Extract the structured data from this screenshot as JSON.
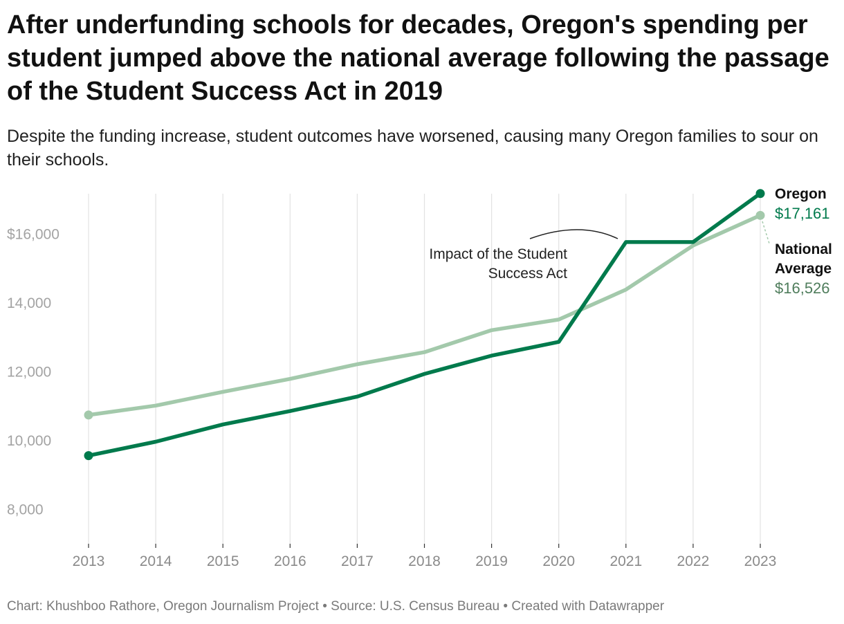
{
  "title": "After underfunding schools for decades, Oregon's spending per student jumped above the national average following the passage of the Student Success Act in 2019",
  "subtitle": "Despite the funding increase, student outcomes have worsened, causing many Oregon families to sour on their schools.",
  "footer": {
    "chart_credit": "Chart: Khushboo Rathore, Oregon Journalism Project",
    "source": "Source: U.S. Census Bureau",
    "created_with": "Created with Datawrapper",
    "separator": "•"
  },
  "colors": {
    "oregon": "#007a4c",
    "national": "#a3c9ab",
    "oregon_text": "#007a4c",
    "national_text": "#4f7d5c"
  },
  "chart_data": {
    "type": "line",
    "x": [
      2013,
      2014,
      2015,
      2016,
      2017,
      2018,
      2019,
      2020,
      2021,
      2022,
      2023
    ],
    "ylim": [
      7000,
      17600
    ],
    "yticks": [
      {
        "value": 16000,
        "label": "$16,000"
      },
      {
        "value": 14000,
        "label": "14,000"
      },
      {
        "value": 12000,
        "label": "12,000"
      },
      {
        "value": 10000,
        "label": "10,000"
      },
      {
        "value": 8000,
        "label": "8,000"
      }
    ],
    "series": [
      {
        "name": "National Average",
        "name_lines": [
          "National",
          "Average"
        ],
        "end_label": "$16,526",
        "values": [
          10725,
          11000,
          11400,
          11775,
          12200,
          12550,
          13190,
          13500,
          14370,
          15650,
          16526
        ]
      },
      {
        "name": "Oregon",
        "name_lines": [
          "Oregon"
        ],
        "end_label": "$17,161",
        "values": [
          9545,
          9950,
          10450,
          10840,
          11260,
          11920,
          12450,
          12850,
          15750,
          15750,
          17161
        ]
      }
    ],
    "annotation": {
      "lines": [
        "Impact of the Student",
        "Success Act"
      ]
    }
  }
}
